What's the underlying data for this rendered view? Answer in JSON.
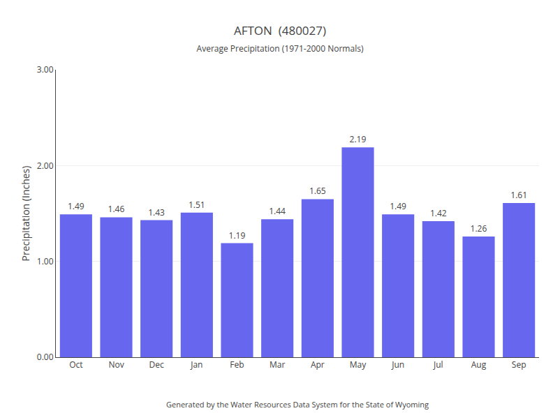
{
  "chart_data": {
    "type": "bar",
    "title": "AFTON  (480027)",
    "subtitle": "Average Precipitation (1971-2000 Normals)",
    "ylabel": "Precipitation (Inches)",
    "footer": "Generated by the Water Resources Data System for the State of Wyoming",
    "categories": [
      "Oct",
      "Nov",
      "Dec",
      "Jan",
      "Feb",
      "Mar",
      "Apr",
      "May",
      "Jun",
      "Jul",
      "Aug",
      "Sep"
    ],
    "values": [
      1.49,
      1.46,
      1.43,
      1.51,
      1.19,
      1.44,
      1.65,
      2.19,
      1.49,
      1.42,
      1.26,
      1.61
    ],
    "color": "#6666ee",
    "ylim": [
      0,
      3.0
    ],
    "yticks": [
      {
        "value": 0.0,
        "label": "0.00"
      },
      {
        "value": 1.0,
        "label": "1.00"
      },
      {
        "value": 2.0,
        "label": "2.00"
      },
      {
        "value": 3.0,
        "label": "3.00"
      }
    ],
    "grid": true,
    "data_labels": true
  }
}
